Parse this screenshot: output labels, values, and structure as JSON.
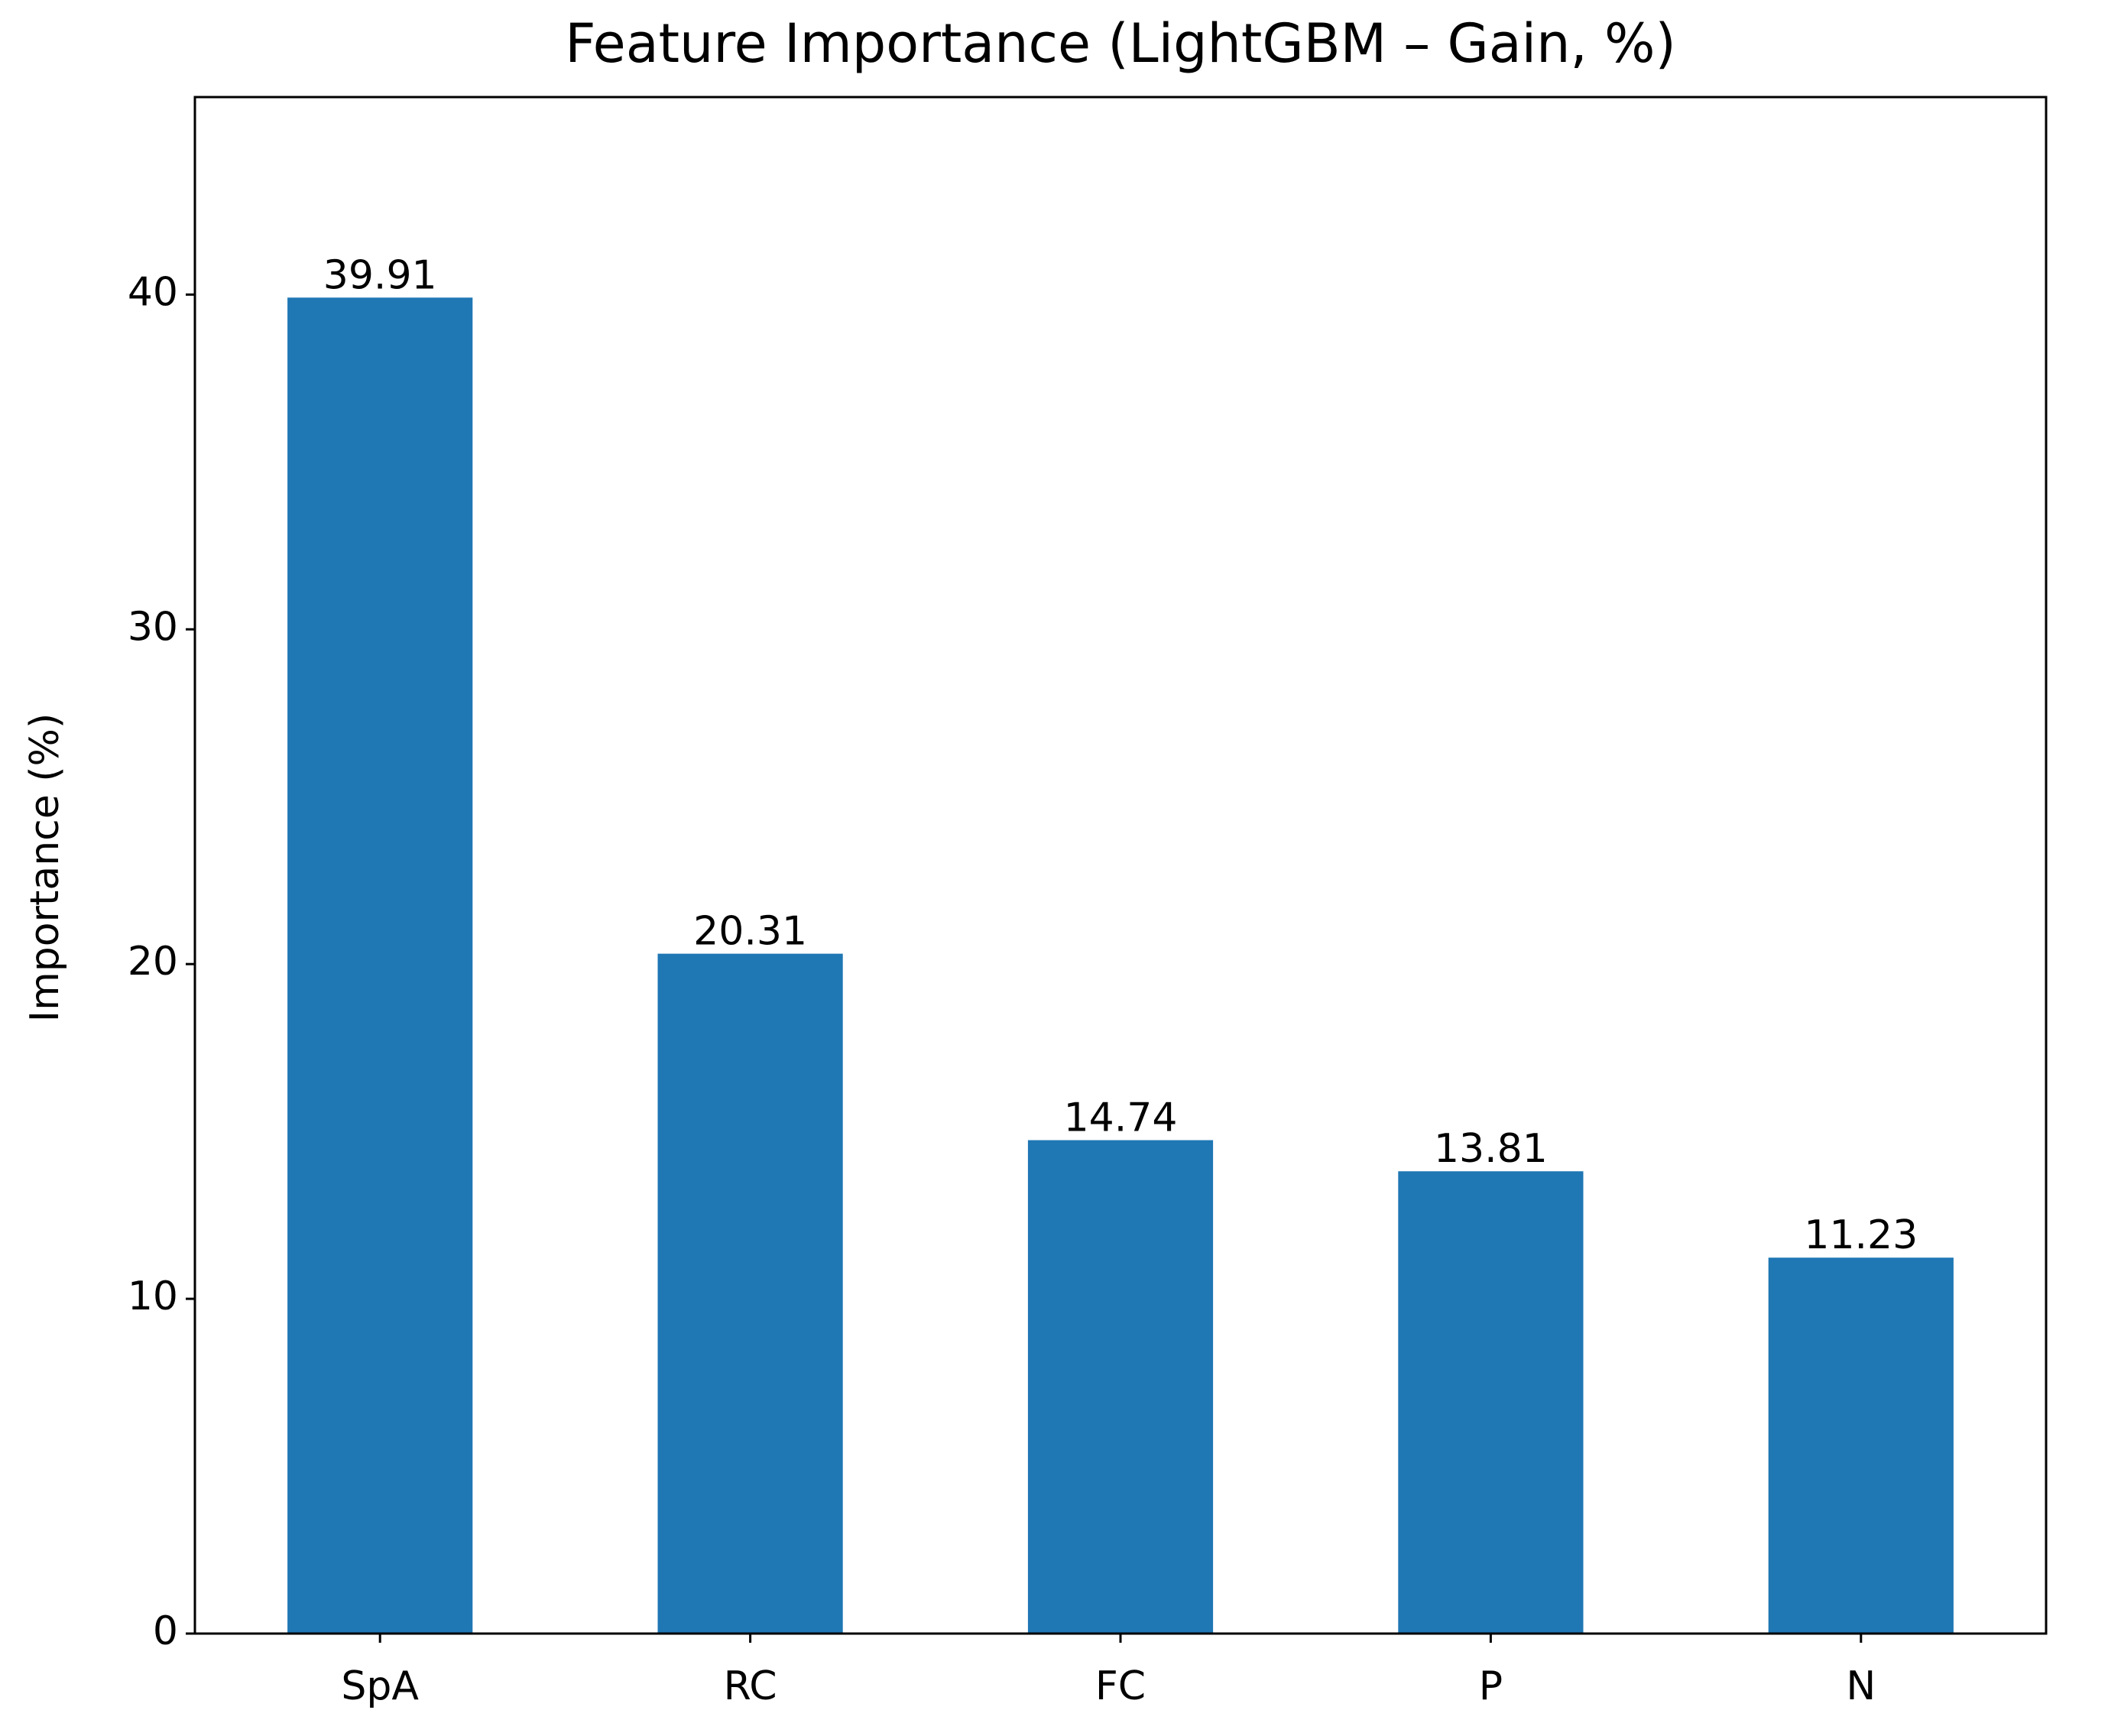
{
  "chart_data": {
    "type": "bar",
    "title": "Feature Importance (LightGBM – Gain, %)",
    "y_label": "Importance (%)",
    "categories": [
      "SpA",
      "RC",
      "FC",
      "P",
      "N"
    ],
    "values": [
      39.91,
      20.31,
      14.74,
      13.81,
      11.23
    ],
    "color": "#1f77b4",
    "ylim": [
      0,
      45.9
    ],
    "yticks": [
      0,
      10,
      20,
      30,
      40
    ],
    "grid": false
  }
}
